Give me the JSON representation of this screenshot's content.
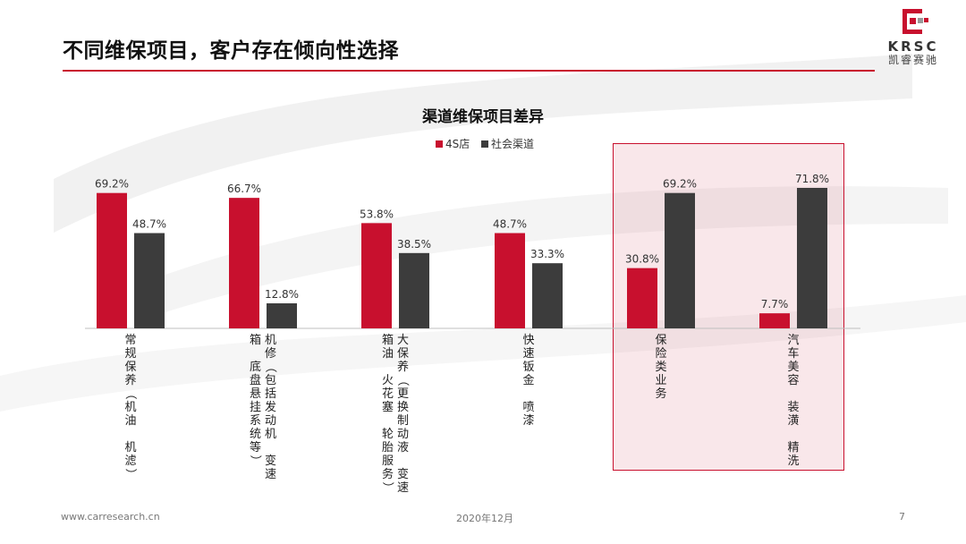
{
  "slide": {
    "title": "不同维保项目，客户存在倾向性选择"
  },
  "logo": {
    "en": "KRSC",
    "cn": "凯睿赛驰"
  },
  "footer": {
    "url": "www.carresearch.cn",
    "date": "2020年12月",
    "page": "7"
  },
  "colors": {
    "accent": "#c8102e",
    "series_4s": "#c8102e",
    "series_social": "#3c3c3c"
  },
  "chart_data": {
    "type": "bar",
    "title": "渠道维保项目差异",
    "xlabel": "",
    "ylabel": "",
    "ylim": [
      0,
      100
    ],
    "grid": false,
    "legend_position": "top-center",
    "categories": [
      "常规保养（机油　机滤）",
      "机修（包括发动机　变速箱　底盘悬挂系统等）",
      "大保养（更换制动液　变速箱油　火花塞　轮胎服务）",
      "快速钣金　喷漆",
      "保险类业务",
      "汽车美容　装潢　精洗"
    ],
    "category_columns": [
      [
        "常规保养（机油　机滤）"
      ],
      [
        "机修（包括发动机　变速",
        "箱　底盘悬挂系统等）"
      ],
      [
        "大保养（更换制动液　变速",
        "箱油　火花塞　轮胎服务）"
      ],
      [
        "快速钣金　喷漆"
      ],
      [
        "保险类业务"
      ],
      [
        "汽车美容　装潢　精洗"
      ]
    ],
    "series": [
      {
        "name": "4S店",
        "values": [
          69.2,
          66.7,
          53.8,
          48.7,
          30.8,
          7.7
        ],
        "labels": [
          "69.2%",
          "66.7%",
          "53.8%",
          "48.7%",
          "30.8%",
          "7.7%"
        ]
      },
      {
        "name": "社会渠道",
        "values": [
          48.7,
          12.8,
          38.5,
          33.3,
          69.2,
          71.8
        ],
        "labels": [
          "48.7%",
          "12.8%",
          "38.5%",
          "33.3%",
          "69.2%",
          "71.8%"
        ]
      }
    ],
    "highlighted_categories": [
      "保险类业务",
      "汽车美容　装潢　精洗"
    ]
  }
}
